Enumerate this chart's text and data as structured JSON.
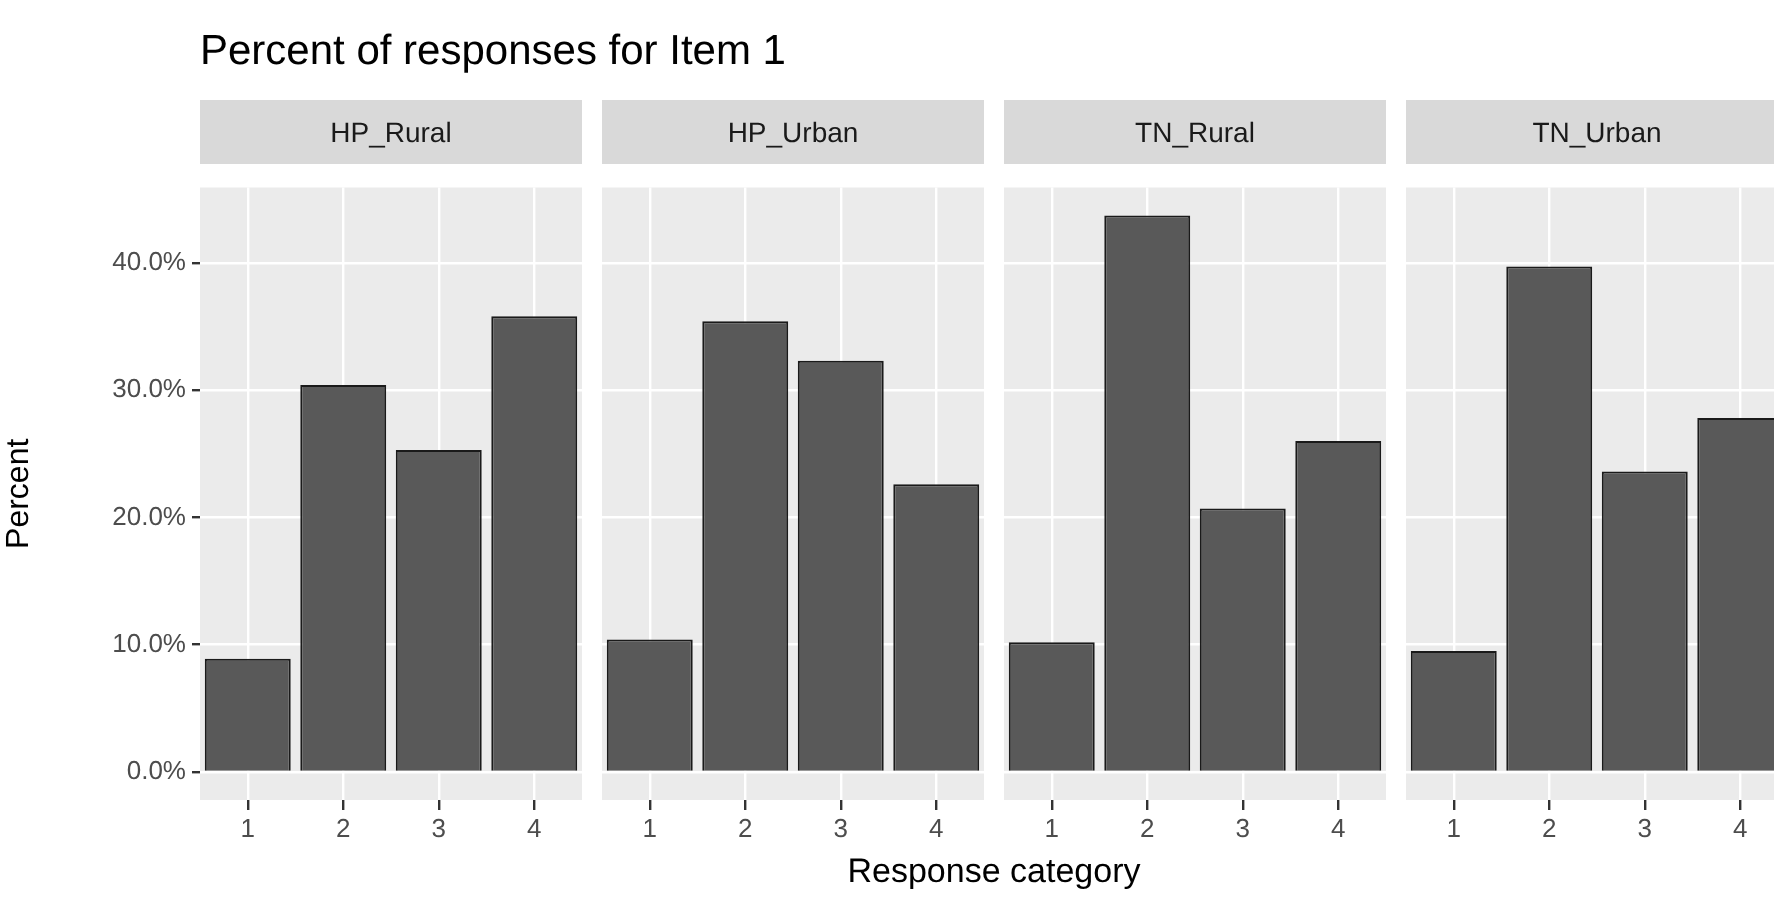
{
  "chart_data": [
    {
      "type": "bar",
      "title": "Percent of responses for Item 1",
      "subtitle": "HP_Rural",
      "ylabel": "Percent",
      "categories": [
        "1",
        "2",
        "3",
        "4"
      ],
      "values": [
        8.9,
        30.4,
        25.3,
        35.8
      ],
      "color": "#595959",
      "ylim": [
        -2.2,
        45.9
      ],
      "yticks": [
        {
          "value": 0,
          "label": "0.0%"
        },
        {
          "value": 10,
          "label": "10.0%"
        },
        {
          "value": 20,
          "label": "20.0%"
        },
        {
          "value": 30,
          "label": "30.0%"
        },
        {
          "value": 40,
          "label": "40.0%"
        }
      ],
      "grid": true
    },
    {
      "type": "bar",
      "subtitle": "HP_Urban",
      "xlabel": "Response category",
      "categories": [
        "1",
        "2",
        "3",
        "4"
      ],
      "values": [
        10.4,
        35.4,
        32.3,
        22.6
      ],
      "color": "#595959",
      "ylim": [
        -2.2,
        45.9
      ],
      "yticks": [
        0,
        10,
        20,
        30,
        40
      ],
      "grid": true,
      "tick_labels": "x"
    },
    {
      "type": "bar",
      "subtitle": "TN_Rural",
      "categories": [
        "1",
        "2",
        "3",
        "4"
      ],
      "values": [
        10.2,
        43.7,
        20.7,
        26.0
      ],
      "color": "#595959",
      "ylim": [
        -2.2,
        45.9
      ],
      "yticks": [
        0,
        10,
        20,
        30,
        40
      ],
      "grid": true,
      "tick_labels": "x"
    },
    {
      "type": "bar",
      "subtitle": "TN_Urban",
      "categories": [
        "1",
        "2",
        "3",
        "4"
      ],
      "values": [
        9.5,
        39.7,
        23.6,
        27.8
      ],
      "color": "#595959",
      "ylim": [
        -2.2,
        45.9
      ],
      "yticks": [
        0,
        10,
        20,
        30,
        40
      ],
      "grid": true,
      "tick_labels": "x"
    }
  ]
}
